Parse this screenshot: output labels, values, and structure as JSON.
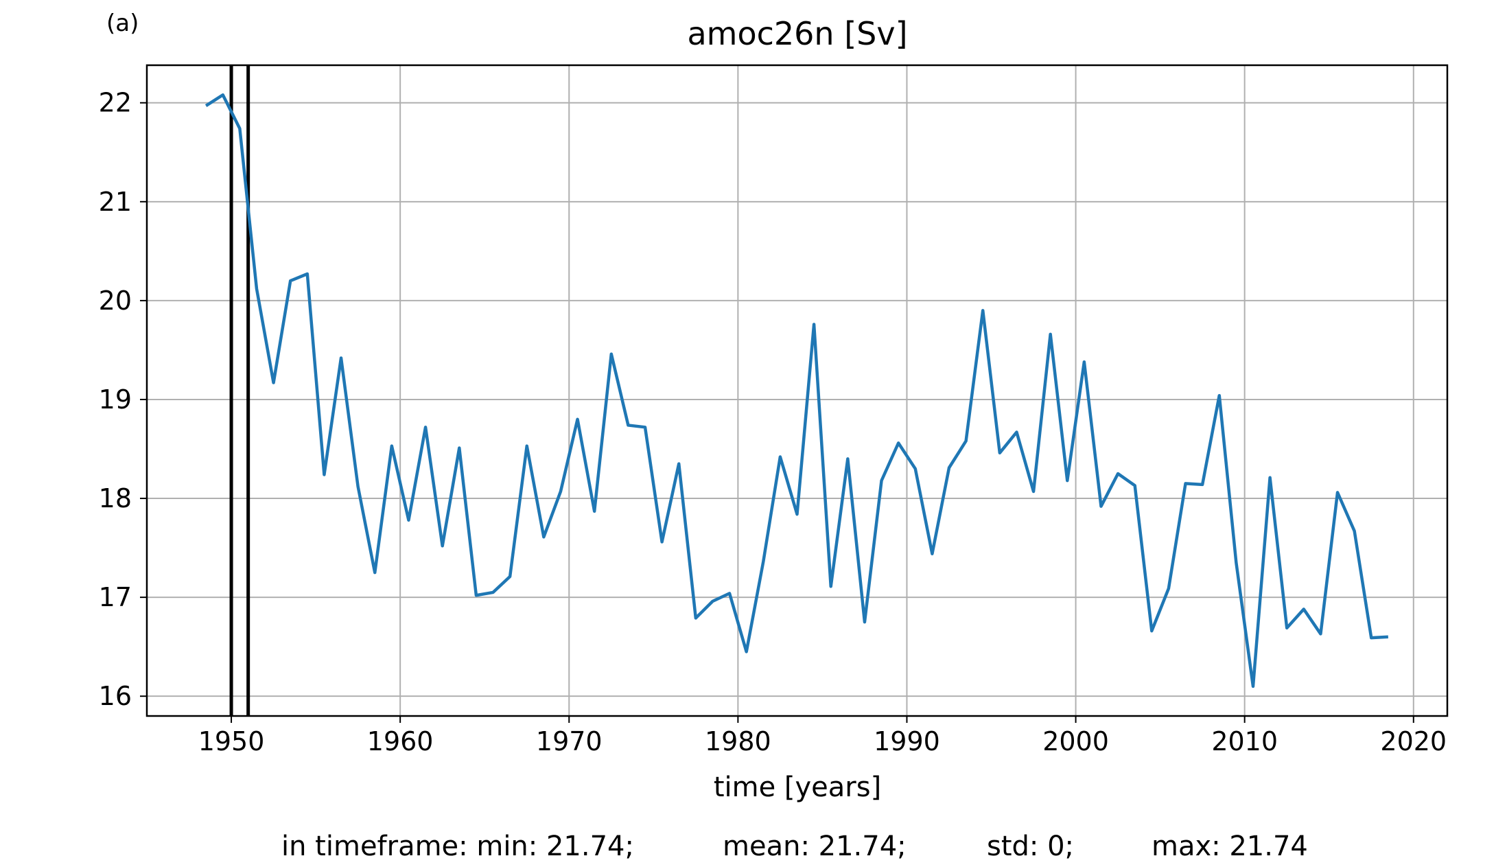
{
  "panel_label": "(a)",
  "stats": {
    "min_text": "in timeframe: min: 21.74;",
    "mean_text": "mean: 21.74;",
    "std_text": "std: 0;",
    "max_text": "max: 21.74"
  },
  "colors": {
    "line": "#1f77b4",
    "grid": "#b0b0b0",
    "marker_lines": "#000000"
  },
  "chart_data": {
    "type": "line",
    "title": "amoc26n [Sv]",
    "xlabel": "time [years]",
    "ylabel": "",
    "xlim": [
      1945,
      2022
    ],
    "ylim": [
      15.8,
      22.38
    ],
    "xticks": [
      1950,
      1960,
      1970,
      1980,
      1990,
      2000,
      2010,
      2020
    ],
    "yticks": [
      16,
      17,
      18,
      19,
      20,
      21,
      22
    ],
    "grid": true,
    "vlines": [
      1950.0,
      1951.0
    ],
    "series": [
      {
        "x": [
          1948.5,
          1949.5,
          1950.5,
          1951.5,
          1952.5,
          1953.5,
          1954.5,
          1955.5,
          1956.5,
          1957.5,
          1958.5,
          1959.5,
          1960.5,
          1961.5,
          1962.5,
          1963.5,
          1964.5,
          1965.5,
          1966.5,
          1967.5,
          1968.5,
          1969.5,
          1970.5,
          1971.5,
          1972.5,
          1973.5,
          1974.5,
          1975.5,
          1976.5,
          1977.5,
          1978.5,
          1979.5,
          1980.5,
          1981.5,
          1982.5,
          1983.5,
          1984.5,
          1985.5,
          1986.5,
          1987.5,
          1988.5,
          1989.5,
          1990.5,
          1991.5,
          1992.5,
          1993.5,
          1994.5,
          1995.5,
          1996.5,
          1997.5,
          1998.5,
          1999.5,
          2000.5,
          2001.5,
          2002.5,
          2003.5,
          2004.5,
          2005.5,
          2006.5,
          2007.5,
          2008.5,
          2009.5,
          2010.5,
          2011.5,
          2012.5,
          2013.5,
          2014.5,
          2015.5,
          2016.5,
          2017.5,
          2018.5
        ],
        "values": [
          21.97,
          22.08,
          21.74,
          20.12,
          19.17,
          20.2,
          20.27,
          18.24,
          19.42,
          18.12,
          17.25,
          18.53,
          17.78,
          18.72,
          17.52,
          18.51,
          17.02,
          17.05,
          17.21,
          18.53,
          17.61,
          18.07,
          18.8,
          17.87,
          19.46,
          18.74,
          18.72,
          17.56,
          18.35,
          16.79,
          16.96,
          17.04,
          16.45,
          17.36,
          18.42,
          17.84,
          19.76,
          17.11,
          18.4,
          16.75,
          18.18,
          18.56,
          18.3,
          17.44,
          18.31,
          18.58,
          19.9,
          18.46,
          18.67,
          18.07,
          19.66,
          18.18,
          19.38,
          17.92,
          18.25,
          18.13,
          16.66,
          17.09,
          18.15,
          18.14,
          19.04,
          17.35,
          16.1,
          18.21,
          16.69,
          16.88,
          16.63,
          18.06,
          17.67,
          16.59,
          16.6
        ]
      }
    ]
  }
}
